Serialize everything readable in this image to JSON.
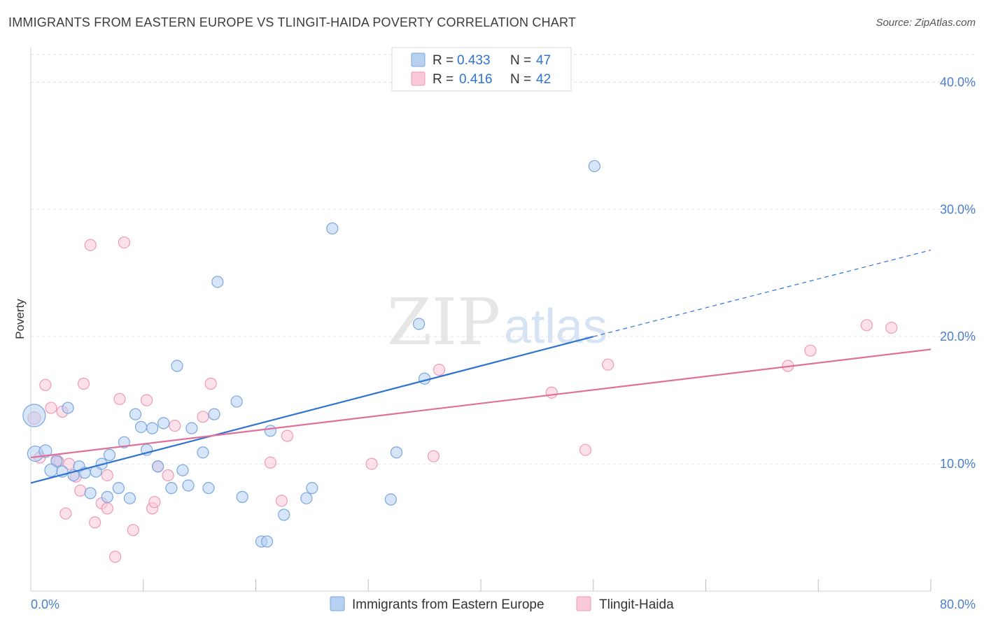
{
  "header": {
    "title": "IMMIGRANTS FROM EASTERN EUROPE VS TLINGIT-HAIDA POVERTY CORRELATION CHART",
    "source": "Source: ZipAtlas.com"
  },
  "watermark": {
    "zip": "ZIP",
    "atlas": "atlas"
  },
  "colors": {
    "blue_fill": "#b7d0f2",
    "blue_stroke": "#7aa6dd",
    "blue_line": "#2f73d0",
    "pink_fill": "#f9c9d8",
    "pink_stroke": "#ee9ab6",
    "pink_line": "#e0709a",
    "tick_text": "#4a7ecb",
    "grid": "#dddddd"
  },
  "legend": {
    "r_label": "R =",
    "n_label": "N =",
    "series": [
      {
        "r_value": "0.433",
        "n_value": "47"
      },
      {
        "r_value": "0.416",
        "n_value": "42"
      }
    ]
  },
  "chart_data": {
    "type": "scatter",
    "title": "IMMIGRANTS FROM EASTERN EUROPE VS TLINGIT-HAIDA POVERTY CORRELATION CHART",
    "xlabel": "",
    "ylabel": "Poverty",
    "xlim": [
      0,
      80
    ],
    "ylim": [
      0,
      42
    ],
    "x_tick_labels": [
      "0.0%",
      "80.0%"
    ],
    "y_ticks": [
      10,
      20,
      30,
      40
    ],
    "y_tick_labels": [
      "10.0%",
      "20.0%",
      "30.0%",
      "40.0%"
    ],
    "grid": true,
    "legend_position": "top-center",
    "series": [
      {
        "name": "Immigrants from Eastern Europe",
        "color": "blue",
        "r": 0.433,
        "n": 47,
        "trend": {
          "x0": 0,
          "y0": 8.5,
          "x1": 50,
          "y1": 20.0,
          "dashed_to_x": 80,
          "dashed_to_y": 26.8
        },
        "points": [
          [
            0.3,
            13.8,
            16
          ],
          [
            0.4,
            10.8,
            11
          ],
          [
            1.3,
            11.0,
            9
          ],
          [
            2.3,
            10.2,
            8
          ],
          [
            1.8,
            9.5,
            9
          ],
          [
            2.8,
            9.4,
            8
          ],
          [
            3.3,
            14.4,
            8
          ],
          [
            4.3,
            9.8,
            8
          ],
          [
            3.8,
            9.1,
            8
          ],
          [
            4.8,
            9.3,
            8
          ],
          [
            5.3,
            7.7,
            8
          ],
          [
            5.8,
            9.4,
            8
          ],
          [
            6.3,
            10.0,
            8
          ],
          [
            7.0,
            10.7,
            8
          ],
          [
            6.8,
            7.4,
            8
          ],
          [
            7.8,
            8.1,
            8
          ],
          [
            8.3,
            11.7,
            8
          ],
          [
            8.8,
            7.3,
            8
          ],
          [
            9.3,
            13.9,
            8
          ],
          [
            9.8,
            12.9,
            8
          ],
          [
            10.3,
            11.1,
            8
          ],
          [
            10.8,
            12.8,
            8
          ],
          [
            11.3,
            9.8,
            8
          ],
          [
            11.8,
            13.2,
            8
          ],
          [
            12.5,
            8.1,
            8
          ],
          [
            13.0,
            17.7,
            8
          ],
          [
            13.5,
            9.5,
            8
          ],
          [
            14.0,
            8.3,
            8
          ],
          [
            14.3,
            12.8,
            8
          ],
          [
            15.3,
            10.9,
            8
          ],
          [
            15.8,
            8.1,
            8
          ],
          [
            16.3,
            13.9,
            8
          ],
          [
            16.6,
            24.3,
            8
          ],
          [
            18.3,
            14.9,
            8
          ],
          [
            18.8,
            7.4,
            8
          ],
          [
            20.5,
            3.9,
            8
          ],
          [
            21.0,
            3.9,
            8
          ],
          [
            21.3,
            12.6,
            8
          ],
          [
            22.5,
            6.0,
            8
          ],
          [
            24.5,
            7.3,
            8
          ],
          [
            25.0,
            8.1,
            8
          ],
          [
            26.8,
            28.5,
            8
          ],
          [
            32.0,
            7.2,
            8
          ],
          [
            32.5,
            10.9,
            8
          ],
          [
            34.5,
            21.0,
            8
          ],
          [
            35.0,
            16.7,
            8
          ],
          [
            50.1,
            33.4,
            8
          ]
        ]
      },
      {
        "name": "Tlingit-Haida",
        "color": "pink",
        "r": 0.416,
        "n": 42,
        "trend": {
          "x0": 0,
          "y0": 10.5,
          "x1": 80,
          "y1": 19.0
        },
        "points": [
          [
            0.3,
            13.6,
            9
          ],
          [
            0.8,
            10.5,
            8
          ],
          [
            1.3,
            16.2,
            8
          ],
          [
            1.8,
            14.4,
            8
          ],
          [
            2.3,
            10.3,
            8
          ],
          [
            2.8,
            14.1,
            8
          ],
          [
            3.1,
            6.1,
            8
          ],
          [
            3.4,
            10.0,
            8
          ],
          [
            4.0,
            9.0,
            8
          ],
          [
            4.4,
            7.9,
            8
          ],
          [
            4.7,
            16.3,
            8
          ],
          [
            5.3,
            27.2,
            8
          ],
          [
            5.7,
            5.4,
            8
          ],
          [
            6.3,
            6.9,
            8
          ],
          [
            6.8,
            9.1,
            8
          ],
          [
            6.8,
            6.5,
            8
          ],
          [
            7.5,
            2.7,
            8
          ],
          [
            7.9,
            15.1,
            8
          ],
          [
            8.3,
            27.4,
            8
          ],
          [
            9.1,
            4.8,
            8
          ],
          [
            10.3,
            15.0,
            8
          ],
          [
            10.8,
            6.5,
            8
          ],
          [
            11.0,
            7.0,
            8
          ],
          [
            11.3,
            9.8,
            8
          ],
          [
            12.2,
            9.1,
            8
          ],
          [
            12.8,
            13.0,
            8
          ],
          [
            15.3,
            13.7,
            8
          ],
          [
            16.0,
            16.3,
            8
          ],
          [
            21.3,
            10.1,
            8
          ],
          [
            22.3,
            7.1,
            8
          ],
          [
            22.8,
            12.2,
            8
          ],
          [
            30.3,
            10.0,
            8
          ],
          [
            35.8,
            10.6,
            8
          ],
          [
            36.3,
            17.4,
            8
          ],
          [
            46.3,
            15.6,
            8
          ],
          [
            49.3,
            11.1,
            8
          ],
          [
            51.3,
            17.8,
            8
          ],
          [
            67.3,
            17.7,
            8
          ],
          [
            69.3,
            18.9,
            8
          ],
          [
            74.3,
            20.9,
            8
          ],
          [
            76.5,
            20.7,
            8
          ],
          [
            2.5,
            10.2,
            7
          ]
        ]
      }
    ]
  }
}
